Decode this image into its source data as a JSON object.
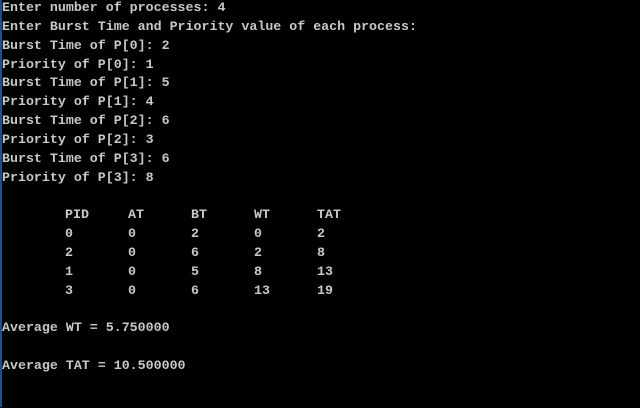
{
  "console": {
    "prompt_lines": [
      "Enter number of processes: 4",
      "Enter Burst Time and Priority value of each process:",
      "Burst Time of P[0]: 2",
      "Priority of P[0]: 1",
      "Burst Time of P[1]: 5",
      "Priority of P[1]: 4",
      "Burst Time of P[2]: 6",
      "Priority of P[2]: 3",
      "Burst Time of P[3]: 6",
      "Priority of P[3]: 8"
    ],
    "table": {
      "headers": [
        "PID",
        "AT",
        "BT",
        "WT",
        "TAT"
      ],
      "rows": [
        [
          "0",
          "0",
          "2",
          "0",
          "2"
        ],
        [
          "2",
          "0",
          "6",
          "2",
          "8"
        ],
        [
          "1",
          "0",
          "5",
          "8",
          "13"
        ],
        [
          "3",
          "0",
          "6",
          "13",
          "19"
        ]
      ]
    },
    "average_wt": "Average WT = 5.750000",
    "average_tat": "Average TAT = 10.500000"
  }
}
